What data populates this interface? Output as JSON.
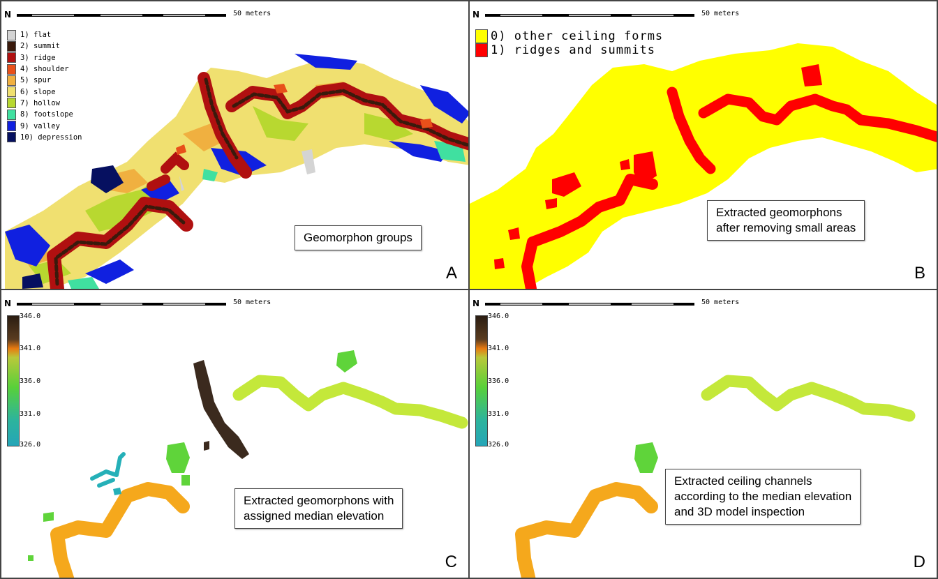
{
  "scale": {
    "north_symbol": "N",
    "label": "50 meters"
  },
  "panel_a": {
    "legend": [
      {
        "label": "1) flat",
        "color": "#d4d4d4"
      },
      {
        "label": "2) summit",
        "color": "#3a1a0c"
      },
      {
        "label": "3) ridge",
        "color": "#b01010"
      },
      {
        "label": "4) shoulder",
        "color": "#e8501a"
      },
      {
        "label": "5) spur",
        "color": "#f0b040"
      },
      {
        "label": "6) slope",
        "color": "#f0e070"
      },
      {
        "label": "7) hollow",
        "color": "#b8d830"
      },
      {
        "label": "8) footslope",
        "color": "#40e0a0"
      },
      {
        "label": "9) valley",
        "color": "#1020e0"
      },
      {
        "label": "10) depression",
        "color": "#061060"
      }
    ],
    "caption": "Geomorphon groups",
    "letter": "A"
  },
  "panel_b": {
    "legend": [
      {
        "label": "0) other ceiling forms",
        "color": "#ffff00"
      },
      {
        "label": "1) ridges and summits",
        "color": "#ff0000"
      }
    ],
    "caption": "Extracted geomorphons\nafter removing small areas",
    "letter": "B"
  },
  "panel_c": {
    "colorbar_ticks": [
      "346.0",
      "341.0",
      "336.0",
      "331.0",
      "326.0"
    ],
    "caption": "Extracted geomorphons with\nassigned median elevation",
    "letter": "C"
  },
  "panel_d": {
    "colorbar_ticks": [
      "346.0",
      "341.0",
      "336.0",
      "331.0",
      "326.0"
    ],
    "caption": "Extracted ceiling channels\naccording to the median elevation\nand 3D model inspection",
    "letter": "D"
  },
  "colors": {
    "ridge_red": "#ff0000",
    "other_yellow": "#ffff00",
    "elev_high": "#3b2a1e",
    "elev_mid_orange": "#f5a81c",
    "elev_yellowgreen": "#c4e83a",
    "elev_green": "#5fd43a",
    "elev_teal": "#25b0b8"
  }
}
